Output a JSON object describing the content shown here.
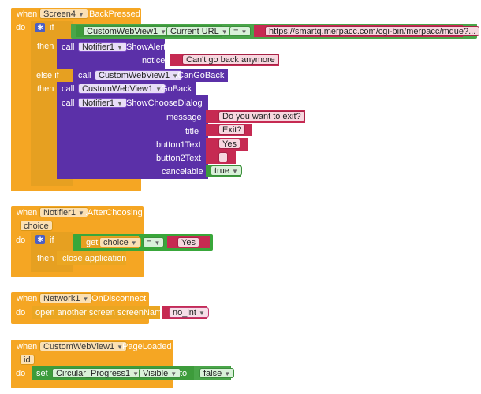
{
  "blocks": {
    "screen_back": {
      "when": "when",
      "component": "Screen4",
      "event": ".BackPressed",
      "do": "do",
      "if": "if",
      "then": "then",
      "else_if": "else if",
      "then2": "then",
      "cond_component": "CustomWebView1",
      "cond_property": "Current URL",
      "cond_op": "=",
      "cond_value": "https://smartq.merpacc.com/cgi-bin/merpacc/mque?...",
      "call1": "call",
      "call1_component": "Notifier1",
      "call1_method": ".ShowAlert",
      "notice_label": "notice",
      "notice_value": "Can't go back anymore",
      "call2": "call",
      "call2_component": "CustomWebView1",
      "call2_method": ".CanGoBack",
      "call3": "call",
      "call3_component": "CustomWebView1",
      "call3_method": ".GoBack",
      "call4": "call",
      "call4_component": "Notifier1",
      "call4_method": ".ShowChooseDialog",
      "message_label": "message",
      "message_value": "Do you want to exit?",
      "title_label": "title",
      "title_value": "Exit?",
      "button1_label": "button1Text",
      "button1_value": "Yes",
      "button2_label": "button2Text",
      "button2_value": "",
      "cancelable_label": "cancelable",
      "cancelable_value": "true"
    },
    "notifier_after": {
      "when": "when",
      "component": "Notifier1",
      "event": ".AfterChoosing",
      "param": "choice",
      "do": "do",
      "if": "if",
      "then": "then",
      "get": "get",
      "get_var": "choice",
      "op": "=",
      "value": "Yes",
      "action": "close application"
    },
    "network": {
      "when": "when",
      "component": "Network1",
      "event": ".OnDisconnect",
      "do": "do",
      "action": "open another screen  screenName",
      "screen_value": "no_int"
    },
    "page_loaded": {
      "when": "when",
      "component": "CustomWebView1",
      "event": ".PageLoaded",
      "param": "id",
      "do": "do",
      "set": "set",
      "set_component": "Circular_Progress1",
      "set_property": "Visible",
      "to": "to",
      "value": "false"
    }
  },
  "icons": {
    "gear": "gear-icon",
    "dropdown": "dropdown-arrow-icon"
  },
  "colors": {
    "event": "#f5a623",
    "call": "#5b30a8",
    "logic": "#3d9c3b",
    "text": "#c62a52"
  }
}
